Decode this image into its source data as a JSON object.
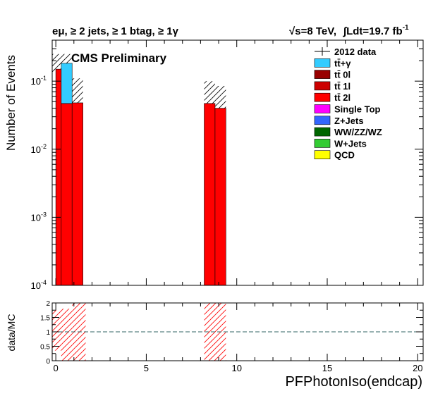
{
  "header": {
    "selection": "eμ, ≥ 2 jets, ≥ 1 btag, ≥ 1γ",
    "energy": "√s=8 TeV,",
    "lumi": "∫Ldt=19.7 fb",
    "lumi_exp": "-1",
    "cms": "CMS Preliminary"
  },
  "legend": [
    {
      "label": "2012 data",
      "kind": "marker",
      "color": "#000000"
    },
    {
      "label": "tt̄+γ",
      "kind": "box",
      "color": "#33ccff"
    },
    {
      "label": "tt̄ 0l",
      "kind": "box",
      "color": "#990000"
    },
    {
      "label": "tt̄ 1l",
      "kind": "box",
      "color": "#cc0000"
    },
    {
      "label": "tt̄ 2l",
      "kind": "box",
      "color": "#ff0000"
    },
    {
      "label": "Single Top",
      "kind": "box",
      "color": "#ff00ff"
    },
    {
      "label": "Z+Jets",
      "kind": "box",
      "color": "#3366ff"
    },
    {
      "label": "WW/ZZ/WZ",
      "kind": "box",
      "color": "#006600"
    },
    {
      "label": "W+Jets",
      "kind": "box",
      "color": "#33cc33"
    },
    {
      "label": "QCD",
      "kind": "box",
      "color": "#ffff00"
    }
  ],
  "chart_data": {
    "type": "bar",
    "ylabel": "Number of Events",
    "xlabel": "PFPhotonIso(endcap)",
    "yscale": "log",
    "ylim": [
      0.0001,
      0.4
    ],
    "xlim": [
      -0.2,
      20.3
    ],
    "yticks": [
      {
        "value": 0.0001,
        "base": "10",
        "exp": "-4"
      },
      {
        "value": 0.001,
        "base": "10",
        "exp": "-3"
      },
      {
        "value": 0.01,
        "base": "10",
        "exp": "-2"
      },
      {
        "value": 0.1,
        "base": "10",
        "exp": "-1"
      }
    ],
    "xticks": [
      {
        "value": 0,
        "label": "0"
      },
      {
        "value": 5,
        "label": "5"
      },
      {
        "value": 10,
        "label": "10"
      },
      {
        "value": 15,
        "label": "15"
      },
      {
        "value": 20,
        "label": "20"
      }
    ],
    "stack": [
      {
        "name": "tt̄ 2l",
        "color": "#ff0000",
        "bins": [
          {
            "x0": 0.0,
            "x1": 0.3,
            "value": 0.15
          },
          {
            "x0": 0.3,
            "x1": 0.9,
            "value": 0.047
          },
          {
            "x0": 0.9,
            "x1": 1.5,
            "value": 0.048
          },
          {
            "x0": 8.2,
            "x1": 8.8,
            "value": 0.047
          },
          {
            "x0": 8.8,
            "x1": 9.4,
            "value": 0.04
          }
        ]
      },
      {
        "name": "tt̄+γ",
        "color": "#33ccff",
        "bins": [
          {
            "x0": 0.3,
            "x1": 0.9,
            "value": 0.136
          }
        ]
      }
    ],
    "uncertainty_bands": [
      {
        "x0": -0.2,
        "x1": 0.3,
        "low": 0.13,
        "high": 0.25
      },
      {
        "x0": 0.3,
        "x1": 0.9,
        "low": 0.15,
        "high": 0.25
      },
      {
        "x0": 0.9,
        "x1": 1.5,
        "low": 0.035,
        "high": 0.11
      },
      {
        "x0": 8.2,
        "x1": 8.8,
        "low": 0.035,
        "high": 0.1
      },
      {
        "x0": 8.8,
        "x1": 9.4,
        "low": 0.03,
        "high": 0.085
      }
    ],
    "ratio": {
      "ylabel": "data/MC",
      "ylim": [
        0,
        2
      ],
      "yticks": [
        "0",
        "0.5",
        "1",
        "1.5",
        "2"
      ],
      "reference_line": 1,
      "bands": [
        {
          "x0": -0.2,
          "x1": 0.3,
          "low": 0.35,
          "high": 1.75
        },
        {
          "x0": 0.3,
          "x1": 0.9,
          "low": 0.0,
          "high": 1.8
        },
        {
          "x0": 0.9,
          "x1": 1.65,
          "low": 0.0,
          "high": 2.0
        },
        {
          "x0": 8.2,
          "x1": 9.4,
          "low": 0.0,
          "high": 2.0
        }
      ]
    }
  }
}
